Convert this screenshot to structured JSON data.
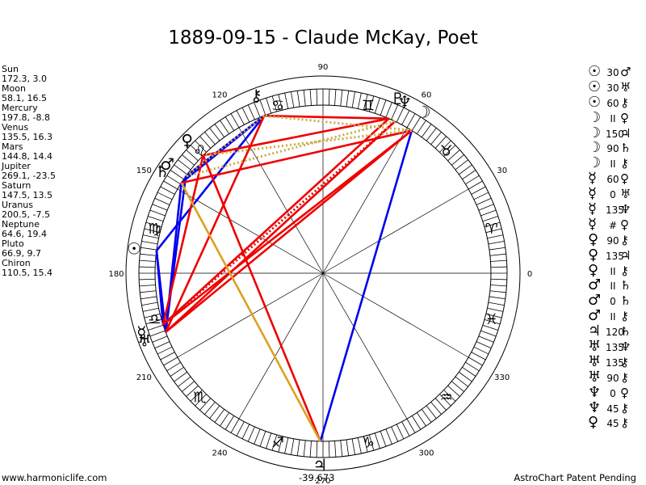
{
  "title": "1889-09-15 - Claude McKay, Poet",
  "planets": [
    {
      "name": "Sun",
      "coords": "172.3, 3.0",
      "glyph": "☉",
      "lon": 172.3
    },
    {
      "name": "Moon",
      "coords": "58.1, 16.5",
      "glyph": "☽",
      "lon": 58.1
    },
    {
      "name": "Mercury",
      "coords": "197.8, -8.8",
      "glyph": "☿",
      "lon": 197.8
    },
    {
      "name": "Venus",
      "coords": "135.5, 16.3",
      "glyph": "♀",
      "lon": 135.5
    },
    {
      "name": "Mars",
      "coords": "144.8, 14.4",
      "glyph": "♂",
      "lon": 144.8
    },
    {
      "name": "Jupiter",
      "coords": "269.1, -23.5",
      "glyph": "♃",
      "lon": 269.1
    },
    {
      "name": "Saturn",
      "coords": "147.5, 13.5",
      "glyph": "♄",
      "lon": 147.5
    },
    {
      "name": "Uranus",
      "coords": "200.5, -7.5",
      "glyph": "♅",
      "lon": 200.5
    },
    {
      "name": "Neptune",
      "coords": "64.6, 19.4",
      "glyph": "♆",
      "lon": 64.6
    },
    {
      "name": "Pluto",
      "coords": "66.9, 9.7",
      "glyph": "♇",
      "lon": 66.9
    },
    {
      "name": "Chiron",
      "coords": "110.5, 15.4",
      "glyph": "⚷",
      "lon": 110.5
    }
  ],
  "aspects": [
    {
      "p1": "☉",
      "angle": "30",
      "p2": "♂"
    },
    {
      "p1": "☉",
      "angle": "30",
      "p2": "♅"
    },
    {
      "p1": "☉",
      "angle": "60",
      "p2": "⚷"
    },
    {
      "p1": "☽",
      "angle": "II",
      "p2": "♀"
    },
    {
      "p1": "☽",
      "angle": "150",
      "p2": "♃"
    },
    {
      "p1": "☽",
      "angle": "90",
      "p2": "♄"
    },
    {
      "p1": "☽",
      "angle": "II",
      "p2": "⚷"
    },
    {
      "p1": "☿",
      "angle": "60",
      "p2": "♀"
    },
    {
      "p1": "☿",
      "angle": "0",
      "p2": "♅"
    },
    {
      "p1": "☿",
      "angle": "135",
      "p2": "♆"
    },
    {
      "p1": "☿",
      "angle": "#",
      "p2": "♀"
    },
    {
      "p1": "♀",
      "angle": "90",
      "p2": "⚷"
    },
    {
      "p1": "♀",
      "angle": "135",
      "p2": "♃"
    },
    {
      "p1": "♀",
      "angle": "II",
      "p2": "⚷"
    },
    {
      "p1": "♂",
      "angle": "II",
      "p2": "♄"
    },
    {
      "p1": "♂",
      "angle": "0",
      "p2": "♄"
    },
    {
      "p1": "♂",
      "angle": "II",
      "p2": "⚷"
    },
    {
      "p1": "♃",
      "angle": "120",
      "p2": "♄"
    },
    {
      "p1": "♅",
      "angle": "135",
      "p2": "♆"
    },
    {
      "p1": "♅",
      "angle": "135",
      "p2": "⚷"
    },
    {
      "p1": "♅",
      "angle": "90",
      "p2": "⚷"
    },
    {
      "p1": "♆",
      "angle": "0",
      "p2": "♀"
    },
    {
      "p1": "♆",
      "angle": "45",
      "p2": "⚷"
    },
    {
      "p1": "♀",
      "angle": "45",
      "p2": "⚷"
    }
  ],
  "degree_labels": [
    {
      "text": "0",
      "deg": 0
    },
    {
      "text": "30",
      "deg": 30
    },
    {
      "text": "60",
      "deg": 60
    },
    {
      "text": "90",
      "deg": 90
    },
    {
      "text": "120",
      "deg": 120
    },
    {
      "text": "150",
      "deg": 150
    },
    {
      "text": "180",
      "deg": 180
    },
    {
      "text": "210",
      "deg": 210
    },
    {
      "text": "240",
      "deg": 240
    },
    {
      "text": "270",
      "deg": 270
    },
    {
      "text": "300",
      "deg": 300
    },
    {
      "text": "330",
      "deg": 330
    }
  ],
  "zodiac_signs": [
    {
      "glyph": "♈",
      "deg": 15
    },
    {
      "glyph": "♉",
      "deg": 45
    },
    {
      "glyph": "♊",
      "deg": 75
    },
    {
      "glyph": "♋",
      "deg": 105
    },
    {
      "glyph": "♌",
      "deg": 135
    },
    {
      "glyph": "♍",
      "deg": 165
    },
    {
      "glyph": "♎",
      "deg": 195
    },
    {
      "glyph": "♏",
      "deg": 225
    },
    {
      "glyph": "♐",
      "deg": 255
    },
    {
      "glyph": "♑",
      "deg": 285
    },
    {
      "glyph": "♒",
      "deg": 315
    },
    {
      "glyph": "♓",
      "deg": 345
    }
  ],
  "aspect_lines": [
    {
      "a": 172.3,
      "b": 200.5,
      "color": "#0000ee",
      "style": "solid"
    },
    {
      "a": 172.3,
      "b": 197.8,
      "color": "#0000ee",
      "style": "solid"
    },
    {
      "a": 110.5,
      "b": 172.3,
      "color": "#0000ee",
      "style": "solid"
    },
    {
      "a": 144.8,
      "b": 200.5,
      "color": "#0000ee",
      "style": "solid"
    },
    {
      "a": 147.5,
      "b": 200.5,
      "color": "#0000ee",
      "style": "solid"
    },
    {
      "a": 110.5,
      "b": 147.5,
      "color": "#0000ee",
      "style": "solid"
    },
    {
      "a": 110.5,
      "b": 144.8,
      "color": "#0000ee",
      "style": "solid"
    },
    {
      "a": 58.1,
      "b": 269.1,
      "color": "#0000ee",
      "style": "solid"
    },
    {
      "a": 110.5,
      "b": 66.9,
      "color": "#ee0000",
      "style": "solid"
    },
    {
      "a": 66.9,
      "b": 197.8,
      "color": "#ee0000",
      "style": "solid"
    },
    {
      "a": 64.6,
      "b": 200.5,
      "color": "#ee0000",
      "style": "solid"
    },
    {
      "a": 58.1,
      "b": 200.5,
      "color": "#ee0000",
      "style": "solid"
    },
    {
      "a": 58.1,
      "b": 147.5,
      "color": "#ee0000",
      "style": "solid"
    },
    {
      "a": 58.1,
      "b": 197.8,
      "color": "#ee0000",
      "style": "solid"
    },
    {
      "a": 66.9,
      "b": 135.5,
      "color": "#ee0000",
      "style": "solid"
    },
    {
      "a": 135.5,
      "b": 269.1,
      "color": "#ee0000",
      "style": "solid"
    },
    {
      "a": 135.5,
      "b": 197.8,
      "color": "#ee0000",
      "style": "solid"
    },
    {
      "a": 110.5,
      "b": 200.5,
      "color": "#ee0000",
      "style": "solid"
    },
    {
      "a": 64.6,
      "b": 197.8,
      "color": "#ee0000",
      "style": "dotted"
    },
    {
      "a": 147.5,
      "b": 269.1,
      "color": "#dda020",
      "style": "solid"
    },
    {
      "a": 58.1,
      "b": 135.5,
      "color": "#ccaa44",
      "style": "dotted"
    },
    {
      "a": 58.1,
      "b": 110.5,
      "color": "#ccaa44",
      "style": "dotted"
    },
    {
      "a": 64.6,
      "b": 144.8,
      "color": "#ccaa44",
      "style": "dotted"
    },
    {
      "a": 110.5,
      "b": 144.8,
      "color": "#ccaa44",
      "style": "dotted"
    }
  ],
  "footer": {
    "left": "www.harmoniclife.com",
    "center": "-39.673",
    "right": "AstroChart Patent Pending"
  }
}
